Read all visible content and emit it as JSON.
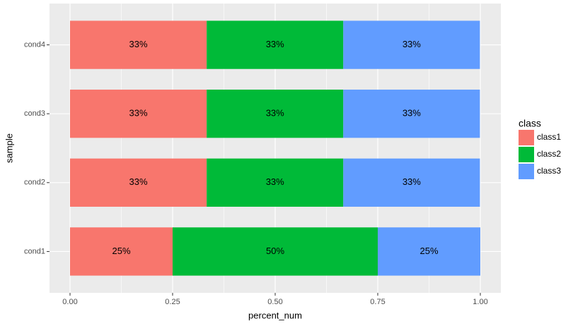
{
  "chart_data": {
    "type": "stacked-bar-horizontal",
    "x_label": "percent_num",
    "y_label": "sample",
    "legend_title": "class",
    "legend_position": "right",
    "grid": true,
    "categories": [
      "cond1",
      "cond2",
      "cond3",
      "cond4"
    ],
    "series": [
      {
        "name": "class1",
        "color": "#F8766D",
        "values": [
          0.25,
          0.333,
          0.333,
          0.333
        ],
        "value_labels": [
          "25%",
          "33%",
          "33%",
          "33%"
        ]
      },
      {
        "name": "class2",
        "color": "#00BA38",
        "values": [
          0.5,
          0.333,
          0.333,
          0.333
        ],
        "value_labels": [
          "50%",
          "33%",
          "33%",
          "33%"
        ]
      },
      {
        "name": "class3",
        "color": "#619CFF",
        "values": [
          0.25,
          0.333,
          0.333,
          0.333
        ],
        "value_labels": [
          "25%",
          "33%",
          "33%",
          "33%"
        ]
      }
    ],
    "xlim": [
      -0.05,
      1.05
    ],
    "xticks": [
      {
        "value": 0,
        "label": "0.00"
      },
      0.25,
      {
        "value": 0.5,
        "label": "0.50"
      },
      0.75,
      {
        "value": 1,
        "label": "1.00"
      }
    ]
  }
}
